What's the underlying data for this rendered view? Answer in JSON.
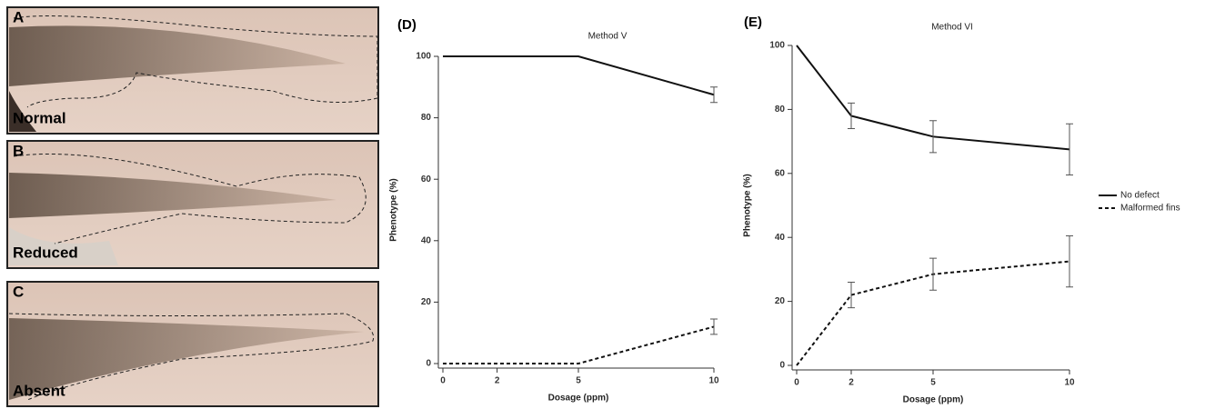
{
  "photos": [
    {
      "letter": "A",
      "caption": "Normal"
    },
    {
      "letter": "B",
      "caption": "Reduced"
    },
    {
      "letter": "C",
      "caption": "Absent"
    }
  ],
  "chart_data": [
    {
      "type": "line",
      "panel_label": "(D)",
      "title": "Method V",
      "x_label": "Dosage (ppm)",
      "y_label": "Phenotype (%)",
      "x": [
        0,
        2,
        5,
        10
      ],
      "xlim": [
        0,
        10
      ],
      "xticks": [
        0,
        2,
        5,
        10
      ],
      "ylim": [
        0,
        100
      ],
      "yticks": [
        0,
        20,
        40,
        60,
        80,
        100
      ],
      "series": [
        {
          "name": "No defect",
          "color": "#111111",
          "line_style": "solid",
          "values": [
            100,
            100,
            100,
            87.5
          ],
          "errors": [
            null,
            null,
            null,
            2.5
          ]
        },
        {
          "name": "Malformed fins",
          "color": "#111111",
          "line_style": "dashed",
          "values": [
            0,
            0,
            0,
            12
          ],
          "errors": [
            null,
            null,
            null,
            2.5
          ]
        }
      ],
      "legend": false
    },
    {
      "type": "line",
      "panel_label": "(E)",
      "title": "Method VI",
      "x_label": "Dosage (ppm)",
      "y_label": "Phenotype (%)",
      "x": [
        0,
        2,
        5,
        10
      ],
      "xlim": [
        0,
        10
      ],
      "xticks": [
        0,
        2,
        5,
        10
      ],
      "ylim": [
        0,
        100
      ],
      "yticks": [
        0,
        20,
        40,
        60,
        80,
        100
      ],
      "series": [
        {
          "name": "No defect",
          "color": "#111111",
          "line_style": "solid",
          "values": [
            100,
            78,
            71.5,
            67.5
          ],
          "errors": [
            null,
            4,
            5,
            8
          ]
        },
        {
          "name": "Malformed fins",
          "color": "#111111",
          "line_style": "dashed",
          "values": [
            0,
            22,
            28.5,
            32.5
          ],
          "errors": [
            null,
            4,
            5,
            8
          ]
        }
      ],
      "legend": "right"
    }
  ]
}
